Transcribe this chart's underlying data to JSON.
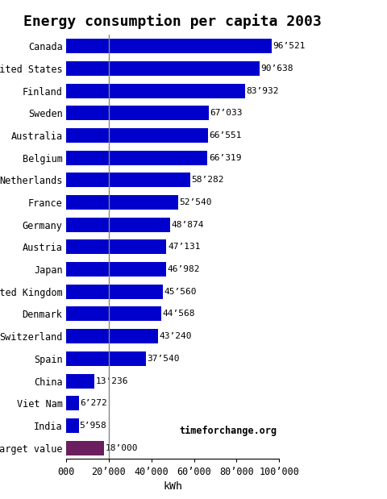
{
  "title": "Energy consumption per capita 2003",
  "xlabel": "kWh",
  "categories": [
    "Target value",
    "India",
    "Viet Nam",
    "China",
    "Spain",
    "Switzerland",
    "Denmark",
    "United Kingdom",
    "Japan",
    "Austria",
    "Germany",
    "France",
    "Netherlands",
    "Belgium",
    "Australia",
    "Sweden",
    "Finland",
    "United States",
    "Canada"
  ],
  "values": [
    18000,
    5958,
    6272,
    13236,
    37540,
    43240,
    44568,
    45560,
    46982,
    47131,
    48874,
    52540,
    58282,
    66319,
    66551,
    67033,
    83932,
    90638,
    96521
  ],
  "bar_colors": [
    "#6b1f5e",
    "#0000cc",
    "#0000cc",
    "#0000cc",
    "#0000cc",
    "#0000cc",
    "#0000cc",
    "#0000cc",
    "#0000cc",
    "#0000cc",
    "#0000cc",
    "#0000cc",
    "#0000cc",
    "#0000cc",
    "#0000cc",
    "#0000cc",
    "#0000cc",
    "#0000cc",
    "#0000cc"
  ],
  "value_labels": [
    "18’000",
    "5’958",
    "6’272",
    "13’236",
    "37’540",
    "43’240",
    "44’568",
    "45’560",
    "46’982",
    "47’131",
    "48’874",
    "52’540",
    "58’282",
    "66’319",
    "66’551",
    "67’033",
    "83’932",
    "90’638",
    "96’521"
  ],
  "xlim": [
    0,
    100000
  ],
  "xticks": [
    0,
    20000,
    40000,
    60000,
    80000,
    100000
  ],
  "xtick_labels": [
    "000",
    "20’000",
    "40’000",
    "60’000",
    "80’000",
    "100’000"
  ],
  "vline_x": 20000,
  "vline_color": "#888888",
  "watermark": "timeforchange.org",
  "background_color": "#ffffff",
  "bar_height": 0.65,
  "title_fontsize": 13,
  "label_fontsize": 8.5,
  "tick_fontsize": 8.5,
  "value_label_fontsize": 8.0
}
